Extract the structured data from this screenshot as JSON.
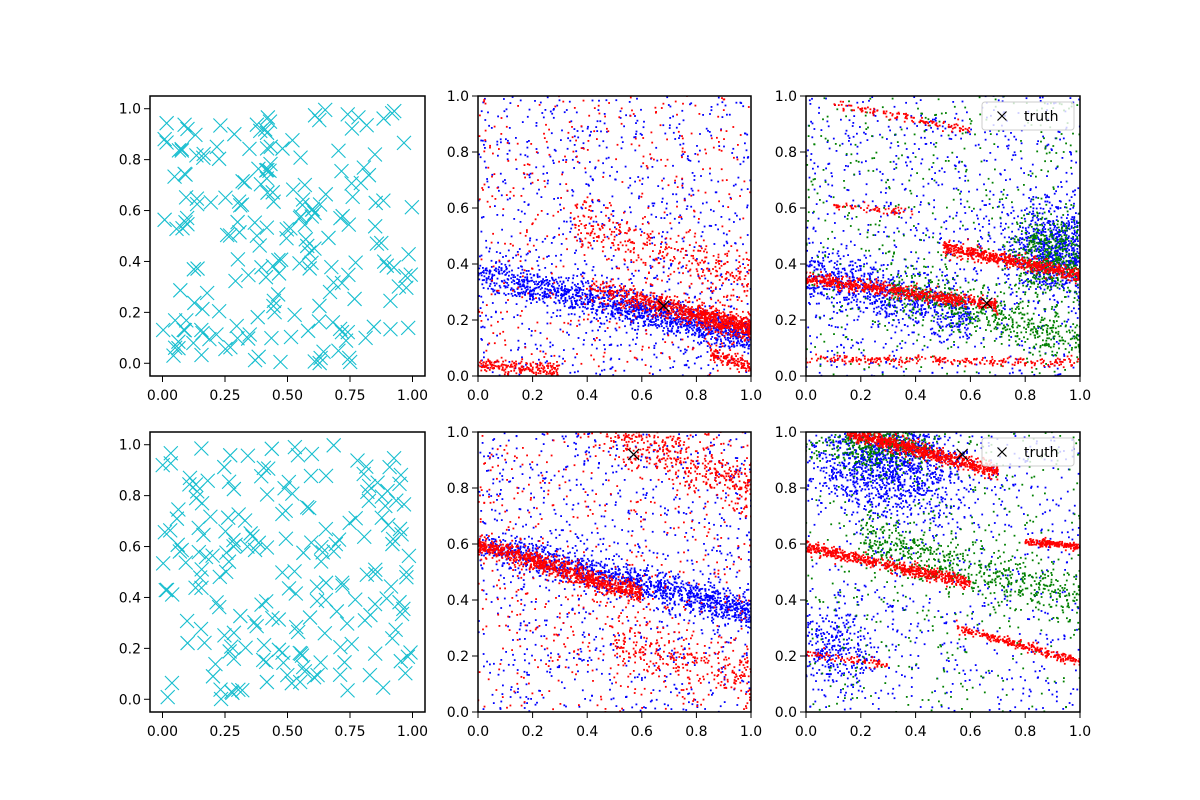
{
  "chart_data": [
    {
      "type": "scatter",
      "panel": "row1-col1",
      "xlim": [
        -0.05,
        1.05
      ],
      "ylim": [
        -0.05,
        1.05
      ],
      "xticks": [
        0.0,
        0.25,
        0.5,
        0.75,
        1.0
      ],
      "xtick_labels": [
        "0.00",
        "0.25",
        "0.50",
        "0.75",
        "1.00"
      ],
      "yticks": [
        0.0,
        0.2,
        0.4,
        0.6,
        0.8,
        1.0
      ],
      "ytick_labels": [
        "0.0",
        "0.2",
        "0.4",
        "0.6",
        "0.8",
        "1.0"
      ],
      "series": [
        {
          "name": "samples",
          "marker": "x",
          "color": "#17becf",
          "count": 200,
          "distribution": "uniform",
          "seed": 11
        }
      ]
    },
    {
      "type": "scatter",
      "panel": "row1-col2",
      "xlim": [
        0,
        1
      ],
      "ylim": [
        0,
        1
      ],
      "xticks": [
        0.0,
        0.2,
        0.4,
        0.6,
        0.8,
        1.0
      ],
      "xtick_labels": [
        "0.0",
        "0.2",
        "0.4",
        "0.6",
        "0.8",
        "1.0"
      ],
      "yticks": [
        0.0,
        0.2,
        0.4,
        0.6,
        0.8,
        1.0
      ],
      "ytick_labels": [
        "0.0",
        "0.2",
        "0.4",
        "0.6",
        "0.8",
        "1.0"
      ],
      "series": [
        {
          "name": "blue",
          "color": "#0000ff",
          "seed": 21,
          "components": [
            {
              "kind": "band",
              "n": 1400,
              "y0": 0.37,
              "y1": 0.14,
              "width": 0.03,
              "xmin": 0,
              "xmax": 1,
              "bias": 1.2
            },
            {
              "kind": "cloud",
              "n": 900,
              "xmin": 0,
              "xmax": 1,
              "ymin": 0,
              "ymax": 1,
              "bias": 1.0
            }
          ]
        },
        {
          "name": "red",
          "color": "#ff0000",
          "seed": 22,
          "components": [
            {
              "kind": "band",
              "n": 900,
              "y0": 0.33,
              "y1": 0.17,
              "width": 0.02,
              "xmin": 0.35,
              "xmax": 1,
              "bias": 2.0
            },
            {
              "kind": "band",
              "n": 200,
              "y0": 0.04,
              "y1": 0.02,
              "width": 0.012,
              "xmin": 0,
              "xmax": 0.3,
              "bias": 1.0
            },
            {
              "kind": "band",
              "n": 120,
              "y0": 0.08,
              "y1": 0.03,
              "width": 0.012,
              "xmin": 0.85,
              "xmax": 1,
              "bias": 1.0
            },
            {
              "kind": "band",
              "n": 300,
              "y0": 0.55,
              "y1": 0.35,
              "width": 0.04,
              "xmin": 0.35,
              "xmax": 1,
              "bias": 1.0
            },
            {
              "kind": "cloud",
              "n": 500,
              "xmin": 0,
              "xmax": 1,
              "ymin": 0,
              "ymax": 1,
              "bias": 1.0
            }
          ]
        }
      ],
      "truth": {
        "x": 0.68,
        "y": 0.25
      }
    },
    {
      "type": "scatter",
      "panel": "row1-col3",
      "xlim": [
        0,
        1
      ],
      "ylim": [
        0,
        1
      ],
      "xticks": [
        0.0,
        0.2,
        0.4,
        0.6,
        0.8,
        1.0
      ],
      "xtick_labels": [
        "0.0",
        "0.2",
        "0.4",
        "0.6",
        "0.8",
        "1.0"
      ],
      "yticks": [
        0.0,
        0.2,
        0.4,
        0.6,
        0.8,
        1.0
      ],
      "ytick_labels": [
        "0.0",
        "0.2",
        "0.4",
        "0.6",
        "0.8",
        "1.0"
      ],
      "legend": {
        "label": "truth",
        "location": "upper right"
      },
      "series": [
        {
          "name": "blue",
          "color": "#0000ff",
          "seed": 31,
          "components": [
            {
              "kind": "band",
              "n": 700,
              "y0": 0.36,
              "y1": 0.22,
              "width": 0.05,
              "xmin": 0,
              "xmax": 0.6,
              "bias": 1.0
            },
            {
              "kind": "blob",
              "n": 900,
              "cx": 0.92,
              "cy": 0.45,
              "sx": 0.09,
              "sy": 0.08
            },
            {
              "kind": "cloud",
              "n": 900,
              "xmin": 0,
              "xmax": 1,
              "ymin": 0,
              "ymax": 1,
              "bias": 1.0
            }
          ]
        },
        {
          "name": "green",
          "color": "#008000",
          "seed": 32,
          "components": [
            {
              "kind": "band",
              "n": 500,
              "y0": 0.32,
              "y1": 0.12,
              "width": 0.04,
              "xmin": 0.3,
              "xmax": 1,
              "bias": 1.0
            },
            {
              "kind": "blob",
              "n": 500,
              "cx": 0.9,
              "cy": 0.42,
              "sx": 0.08,
              "sy": 0.07
            },
            {
              "kind": "cloud",
              "n": 500,
              "xmin": 0,
              "xmax": 1,
              "ymin": 0,
              "ymax": 1,
              "bias": 1.0
            }
          ]
        },
        {
          "name": "red",
          "color": "#ff0000",
          "seed": 33,
          "components": [
            {
              "kind": "band",
              "n": 700,
              "y0": 0.35,
              "y1": 0.25,
              "width": 0.012,
              "xmin": 0,
              "xmax": 0.7,
              "bias": 1.0
            },
            {
              "kind": "band",
              "n": 600,
              "y0": 0.46,
              "y1": 0.36,
              "width": 0.012,
              "xmin": 0.5,
              "xmax": 1,
              "bias": 1.0
            },
            {
              "kind": "band",
              "n": 250,
              "y0": 0.06,
              "y1": 0.05,
              "width": 0.008,
              "xmin": 0,
              "xmax": 1,
              "bias": 1.0
            },
            {
              "kind": "band",
              "n": 120,
              "y0": 0.97,
              "y1": 0.88,
              "width": 0.008,
              "xmin": 0.1,
              "xmax": 0.6,
              "bias": 1.0
            },
            {
              "kind": "band",
              "n": 60,
              "y0": 0.61,
              "y1": 0.58,
              "width": 0.008,
              "xmin": 0.1,
              "xmax": 0.4,
              "bias": 1.0
            }
          ]
        }
      ],
      "truth": {
        "x": 0.66,
        "y": 0.26
      }
    },
    {
      "type": "scatter",
      "panel": "row2-col1",
      "xlim": [
        -0.05,
        1.05
      ],
      "ylim": [
        -0.05,
        1.05
      ],
      "xticks": [
        0.0,
        0.25,
        0.5,
        0.75,
        1.0
      ],
      "xtick_labels": [
        "0.00",
        "0.25",
        "0.50",
        "0.75",
        "1.00"
      ],
      "yticks": [
        0.0,
        0.2,
        0.4,
        0.6,
        0.8,
        1.0
      ],
      "ytick_labels": [
        "0.0",
        "0.2",
        "0.4",
        "0.6",
        "0.8",
        "1.0"
      ],
      "series": [
        {
          "name": "samples",
          "marker": "x",
          "color": "#17becf",
          "count": 200,
          "distribution": "uniform",
          "seed": 41
        }
      ]
    },
    {
      "type": "scatter",
      "panel": "row2-col2",
      "xlim": [
        0,
        1
      ],
      "ylim": [
        0,
        1
      ],
      "xticks": [
        0.0,
        0.2,
        0.4,
        0.6,
        0.8,
        1.0
      ],
      "xtick_labels": [
        "0.0",
        "0.2",
        "0.4",
        "0.6",
        "0.8",
        "1.0"
      ],
      "yticks": [
        0.0,
        0.2,
        0.4,
        0.6,
        0.8,
        1.0
      ],
      "ytick_labels": [
        "0.0",
        "0.2",
        "0.4",
        "0.6",
        "0.8",
        "1.0"
      ],
      "series": [
        {
          "name": "blue",
          "color": "#0000ff",
          "seed": 51,
          "components": [
            {
              "kind": "band",
              "n": 1200,
              "y0": 0.6,
              "y1": 0.36,
              "width": 0.03,
              "xmin": 0,
              "xmax": 1,
              "bias": 1.3
            },
            {
              "kind": "cloud",
              "n": 900,
              "xmin": 0,
              "xmax": 1,
              "ymin": 0,
              "ymax": 1,
              "bias": 1.0
            }
          ]
        },
        {
          "name": "red",
          "color": "#ff0000",
          "seed": 52,
          "components": [
            {
              "kind": "band",
              "n": 900,
              "y0": 0.6,
              "y1": 0.42,
              "width": 0.018,
              "xmin": 0,
              "xmax": 0.6,
              "bias": 1.0
            },
            {
              "kind": "band",
              "n": 500,
              "y0": 1.05,
              "y1": 0.8,
              "width": 0.05,
              "xmin": 0.4,
              "xmax": 1,
              "bias": 1.0
            },
            {
              "kind": "band",
              "n": 250,
              "y0": 0.25,
              "y1": 0.12,
              "width": 0.05,
              "xmin": 0.5,
              "xmax": 1,
              "bias": 1.0
            },
            {
              "kind": "cloud",
              "n": 600,
              "xmin": 0,
              "xmax": 1,
              "ymin": 0,
              "ymax": 1,
              "bias": 1.0
            }
          ]
        }
      ],
      "truth": {
        "x": 0.57,
        "y": 0.92
      }
    },
    {
      "type": "scatter",
      "panel": "row2-col3",
      "xlim": [
        0,
        1
      ],
      "ylim": [
        0,
        1
      ],
      "xticks": [
        0.0,
        0.2,
        0.4,
        0.6,
        0.8,
        1.0
      ],
      "xtick_labels": [
        "0.0",
        "0.2",
        "0.4",
        "0.6",
        "0.8",
        "1.0"
      ],
      "yticks": [
        0.0,
        0.2,
        0.4,
        0.6,
        0.8,
        1.0
      ],
      "ytick_labels": [
        "0.0",
        "0.2",
        "0.4",
        "0.6",
        "0.8",
        "1.0"
      ],
      "legend": {
        "label": "truth",
        "location": "upper right"
      },
      "series": [
        {
          "name": "blue",
          "color": "#0000ff",
          "seed": 61,
          "components": [
            {
              "kind": "blob",
              "n": 1300,
              "cx": 0.3,
              "cy": 0.88,
              "sx": 0.14,
              "sy": 0.09
            },
            {
              "kind": "blob",
              "n": 300,
              "cx": 0.1,
              "cy": 0.22,
              "sx": 0.08,
              "sy": 0.08
            },
            {
              "kind": "cloud",
              "n": 700,
              "xmin": 0,
              "xmax": 1,
              "ymin": 0,
              "ymax": 1,
              "bias": 1.0
            }
          ]
        },
        {
          "name": "green",
          "color": "#008000",
          "seed": 62,
          "components": [
            {
              "kind": "band",
              "n": 600,
              "y0": 0.62,
              "y1": 0.4,
              "width": 0.05,
              "xmin": 0.2,
              "xmax": 1,
              "bias": 1.0
            },
            {
              "kind": "blob",
              "n": 400,
              "cx": 0.25,
              "cy": 0.95,
              "sx": 0.12,
              "sy": 0.04
            },
            {
              "kind": "cloud",
              "n": 400,
              "xmin": 0,
              "xmax": 1,
              "ymin": 0,
              "ymax": 1,
              "bias": 1.0
            }
          ]
        },
        {
          "name": "red",
          "color": "#ff0000",
          "seed": 63,
          "components": [
            {
              "kind": "band",
              "n": 800,
              "y0": 1.0,
              "y1": 0.86,
              "width": 0.014,
              "xmin": 0.15,
              "xmax": 0.7,
              "bias": 1.0
            },
            {
              "kind": "band",
              "n": 600,
              "y0": 0.59,
              "y1": 0.46,
              "width": 0.012,
              "xmin": 0,
              "xmax": 0.6,
              "bias": 1.0
            },
            {
              "kind": "band",
              "n": 200,
              "y0": 0.61,
              "y1": 0.59,
              "width": 0.006,
              "xmin": 0.8,
              "xmax": 1,
              "bias": 1.0
            },
            {
              "kind": "band",
              "n": 280,
              "y0": 0.3,
              "y1": 0.18,
              "width": 0.008,
              "xmin": 0.55,
              "xmax": 1,
              "bias": 1.0
            },
            {
              "kind": "band",
              "n": 80,
              "y0": 0.21,
              "y1": 0.17,
              "width": 0.008,
              "xmin": 0,
              "xmax": 0.3,
              "bias": 1.0
            }
          ]
        }
      ],
      "truth": {
        "x": 0.57,
        "y": 0.92
      }
    }
  ]
}
